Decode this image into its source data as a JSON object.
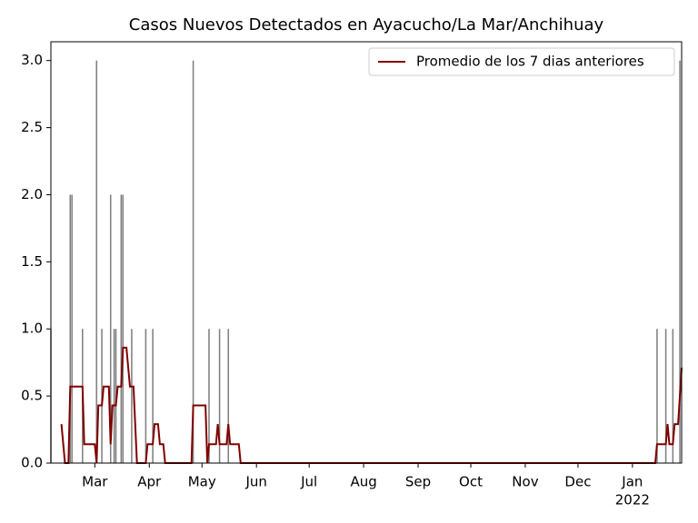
{
  "chart_data": {
    "type": "bar",
    "title": "Casos Nuevos Detectados en Ayacucho/La Mar/Anchihuay",
    "xlim": [
      0,
      359
    ],
    "xticks": [
      {
        "value": 25,
        "label": "Mar"
      },
      {
        "value": 56,
        "label": "Apr"
      },
      {
        "value": 86,
        "label": "May"
      },
      {
        "value": 117,
        "label": "Jun"
      },
      {
        "value": 147,
        "label": "Jul"
      },
      {
        "value": 178,
        "label": "Aug"
      },
      {
        "value": 209,
        "label": "Sep"
      },
      {
        "value": 239,
        "label": "Oct"
      },
      {
        "value": 270,
        "label": "Nov"
      },
      {
        "value": 300,
        "label": "Dec"
      },
      {
        "value": 331,
        "label": "Jan"
      }
    ],
    "x_year_label": "2022",
    "ylim": [
      0,
      3.14
    ],
    "yticks": [
      {
        "value": 0,
        "label": "0.0"
      },
      {
        "value": 0.5,
        "label": "0.5"
      },
      {
        "value": 1,
        "label": "1.0"
      },
      {
        "value": 1.5,
        "label": "1.5"
      },
      {
        "value": 2,
        "label": "2.0"
      },
      {
        "value": 2.5,
        "label": "2.5"
      },
      {
        "value": 3,
        "label": "3.0"
      }
    ],
    "legend": "upper right",
    "series": [
      {
        "type": "bar",
        "color": "#808080",
        "x": [
          0,
          11,
          12,
          18,
          26,
          29,
          34,
          36,
          37,
          40,
          41,
          46,
          54,
          58,
          81,
          90,
          96,
          101,
          345,
          350,
          354,
          358
        ],
        "values": [
          1,
          2,
          2,
          1,
          3,
          1,
          2,
          1,
          1,
          2,
          2,
          1,
          1,
          1,
          3,
          1,
          1,
          1,
          1,
          1,
          1,
          3
        ]
      },
      {
        "type": "line",
        "name": "Promedio de los 7 dias anteriores",
        "color": "#800000",
        "x": [
          6,
          8,
          10,
          11,
          18,
          19,
          25,
          26,
          27,
          29,
          30,
          33,
          34,
          35,
          37,
          38,
          40,
          41,
          43,
          45,
          47,
          49,
          54,
          55,
          58,
          59,
          61,
          62,
          64,
          65,
          80,
          81,
          88,
          89,
          90,
          94,
          95,
          96,
          100,
          101,
          102,
          107,
          108,
          344,
          345,
          350,
          351,
          352,
          354,
          355,
          357,
          359
        ],
        "values": [
          0.29,
          0,
          0,
          0.57,
          0.57,
          0.14,
          0.14,
          0,
          0.43,
          0.43,
          0.57,
          0.57,
          0.14,
          0.43,
          0.43,
          0.57,
          0.57,
          0.86,
          0.86,
          0.57,
          0.57,
          0,
          0,
          0.14,
          0.14,
          0.29,
          0.29,
          0.14,
          0.14,
          0,
          0,
          0.43,
          0.43,
          0,
          0.14,
          0.14,
          0.29,
          0.14,
          0.14,
          0.29,
          0.14,
          0.14,
          0,
          0,
          0.14,
          0.14,
          0.29,
          0.14,
          0.14,
          0.29,
          0.29,
          0.71
        ]
      }
    ]
  }
}
